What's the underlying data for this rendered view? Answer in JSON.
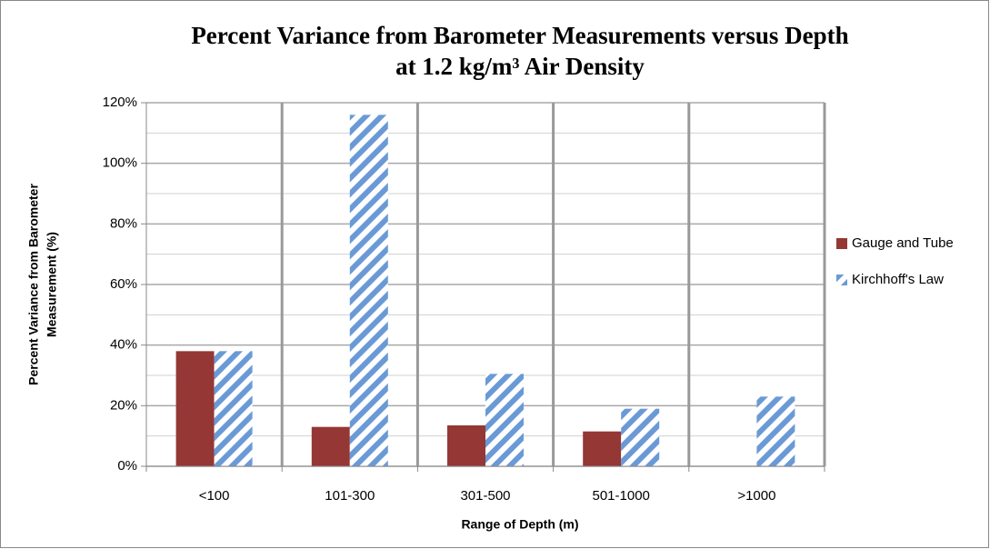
{
  "chart_data": {
    "type": "bar",
    "title": [
      "Percent Variance from Barometer Measurements versus Depth",
      "at 1.2 kg/m³ Air Density"
    ],
    "y_label": [
      "Percent Variance from Barometer",
      "Measurement (%)"
    ],
    "x_label": "Range of Depth (m)",
    "categories": [
      "<100",
      "101-300",
      "301-500",
      "501-1000",
      ">1000"
    ],
    "series": [
      {
        "name": "Gauge and Tube",
        "color": "#953735",
        "values": [
          38,
          13,
          13.5,
          11.5,
          null
        ]
      },
      {
        "name": "Kirchhoff's Law",
        "color": "#6a9ad6",
        "hatch": true,
        "values": [
          38,
          116,
          30.5,
          19,
          23
        ]
      }
    ],
    "ylim": [
      0,
      120
    ],
    "yticks": [
      {
        "value": 0,
        "label": "0%"
      },
      {
        "value": 20,
        "label": "20%"
      },
      {
        "value": 40,
        "label": "40%"
      },
      {
        "value": 60,
        "label": "60%"
      },
      {
        "value": 80,
        "label": "80%"
      },
      {
        "value": 100,
        "label": "100%"
      },
      {
        "value": 120,
        "label": "120%"
      }
    ],
    "minor_yticks": [
      10,
      30,
      50,
      70,
      90,
      110
    ],
    "grid": true,
    "legend": "right"
  }
}
